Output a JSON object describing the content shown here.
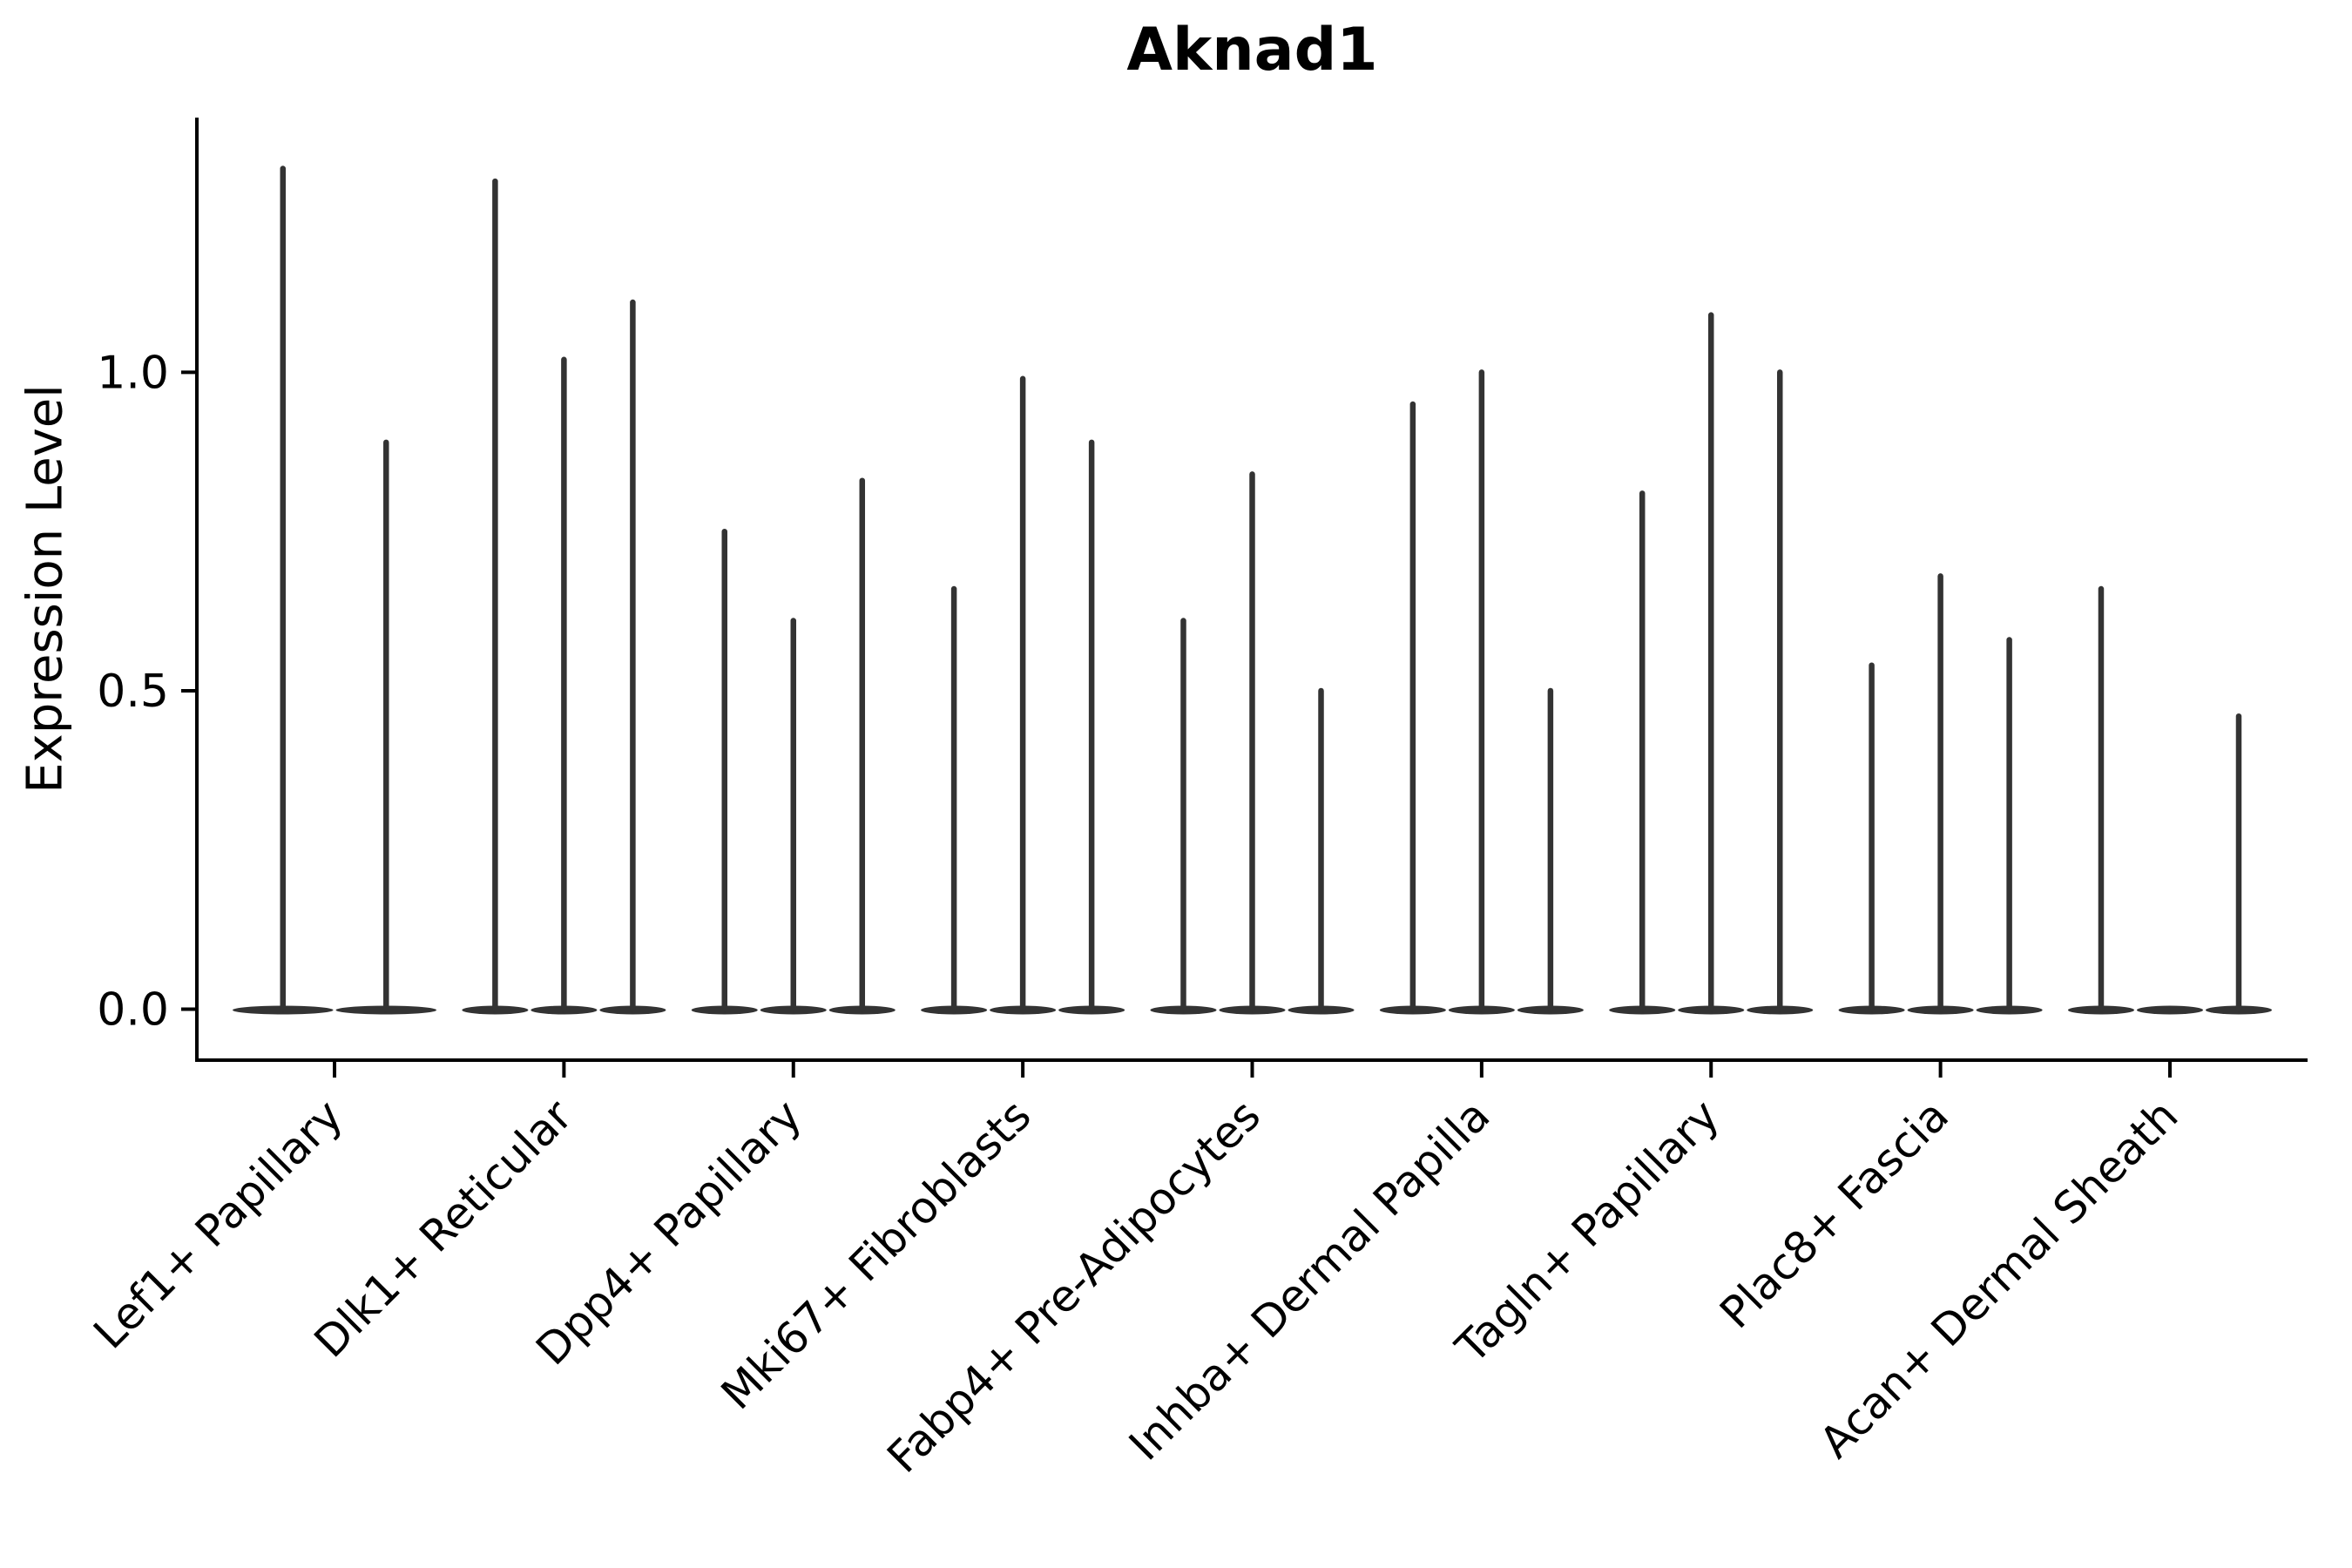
{
  "figure": {
    "title": "Aknad1",
    "ylabel": "Expression Level"
  },
  "chart_data": {
    "type": "violin",
    "title": "Aknad1",
    "xlabel": "",
    "ylabel": "Expression Level",
    "legend_position": "none",
    "grid": false,
    "background": "#ffffff",
    "axis_color": "#000000",
    "violin_color": "#333333",
    "ylim": [
      -0.08,
      1.4
    ],
    "ytick_labels": [
      "0.0",
      "0.5",
      "1.0"
    ],
    "ytick_values": [
      0,
      0.5,
      1
    ],
    "categories": [
      "Lef1+ Papillary",
      "Dlk1+ Reticular",
      "Dpp4+ Papillary",
      "Mki67+ Fibroblasts",
      "Fabp4+ Pre-Adipocytes",
      "Inhba+ Dermal Papilla",
      "Tagln+ Papillary",
      "Plac8+ Fascia",
      "Acan+ Dermal Sheath"
    ],
    "violins_per_category_note": "each inner array lists the max expression (spike top) of each thin violin, left to right; 0 = flat violin with no spike",
    "violin_max_per_category": [
      [
        1.32,
        0.89
      ],
      [
        1.3,
        1.02,
        1.11
      ],
      [
        0.75,
        0.61,
        0.83
      ],
      [
        0.66,
        0.99,
        0.89
      ],
      [
        0.61,
        0.84,
        0.5
      ],
      [
        0.95,
        1.0,
        0.5
      ],
      [
        0.81,
        1.09,
        1.0
      ],
      [
        0.54,
        0.68,
        0.58
      ],
      [
        0.66,
        0.0,
        0.46
      ]
    ]
  }
}
